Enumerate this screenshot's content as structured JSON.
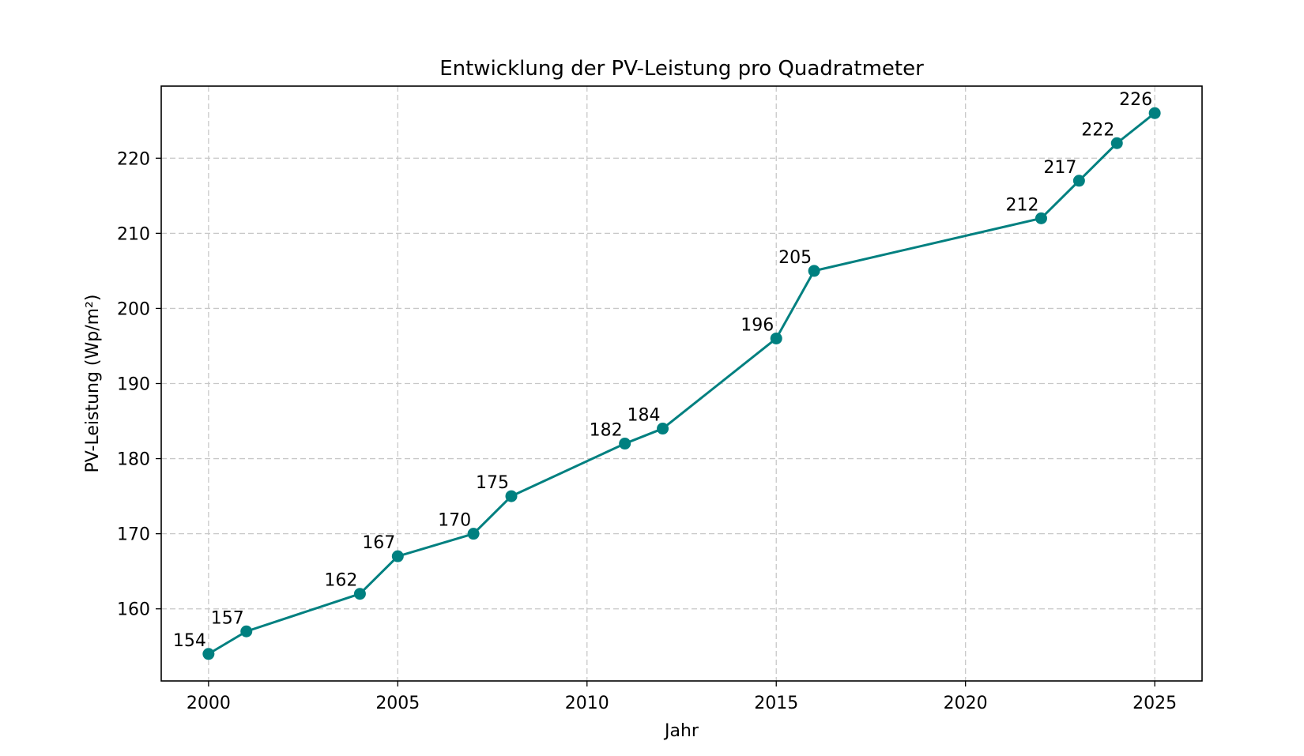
{
  "chart_data": {
    "type": "line",
    "title": "Entwicklung der PV-Leistung pro Quadratmeter",
    "xlabel": "Jahr",
    "ylabel": "PV-Leistung (Wp/m²)",
    "xlim": [
      1998.75,
      2026.25
    ],
    "ylim": [
      150.4,
      229.6
    ],
    "xticks": [
      2000,
      2005,
      2010,
      2015,
      2020,
      2025
    ],
    "yticks": [
      160,
      170,
      180,
      190,
      200,
      210,
      220
    ],
    "grid": true,
    "color": "#008080",
    "series": [
      {
        "x": [
          2000,
          2001,
          2004,
          2005,
          2007,
          2008,
          2011,
          2012,
          2015,
          2016,
          2022,
          2023,
          2024,
          2025
        ],
        "y": [
          154,
          157,
          162,
          167,
          170,
          175,
          182,
          184,
          196,
          205,
          212,
          217,
          222,
          226
        ],
        "labels": [
          "154",
          "157",
          "162",
          "167",
          "170",
          "175",
          "182",
          "184",
          "196",
          "205",
          "212",
          "217",
          "222",
          "226"
        ]
      }
    ]
  }
}
